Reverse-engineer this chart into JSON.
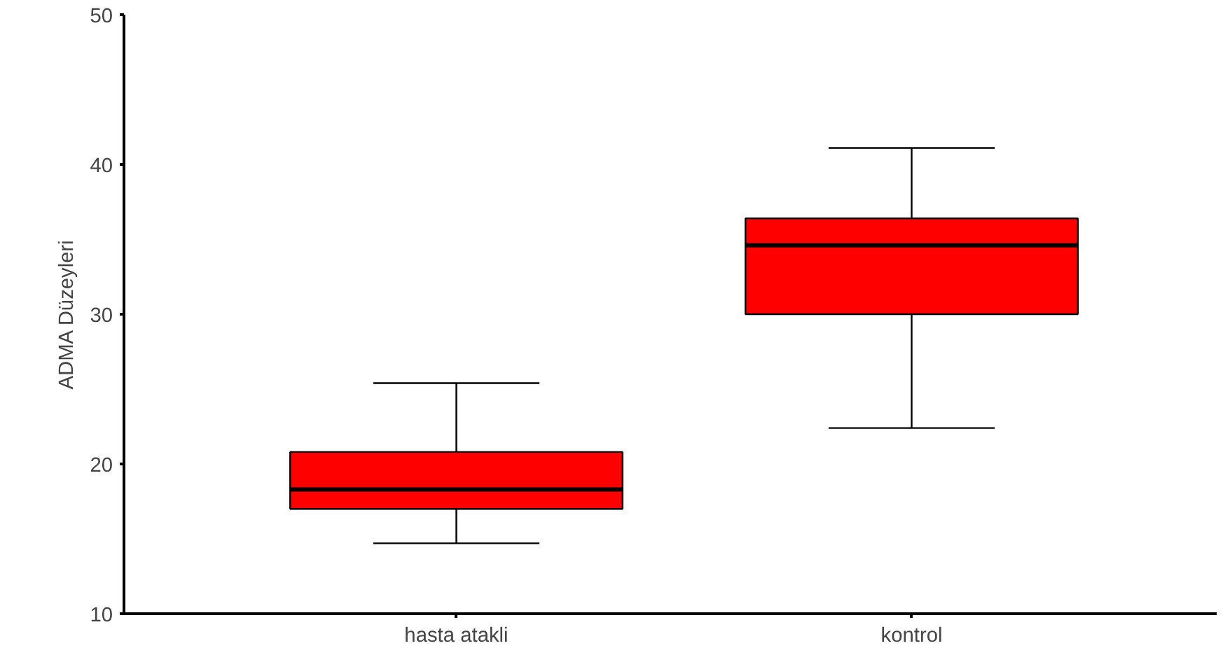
{
  "chart_data": {
    "type": "box",
    "ylabel": "ADMA Düzeyleri",
    "categories": [
      "hasta atakli",
      "kontrol"
    ],
    "color": "#ff0000",
    "ylim": [
      10,
      50
    ],
    "yticks": [
      10,
      20,
      30,
      40,
      50
    ],
    "grid": false,
    "boxes": [
      {
        "low": 14.7,
        "q1": 17.0,
        "median": 18.3,
        "q3": 20.8,
        "high": 25.4
      },
      {
        "low": 22.4,
        "q1": 30.0,
        "median": 34.6,
        "q3": 36.4,
        "high": 41.1
      }
    ]
  }
}
